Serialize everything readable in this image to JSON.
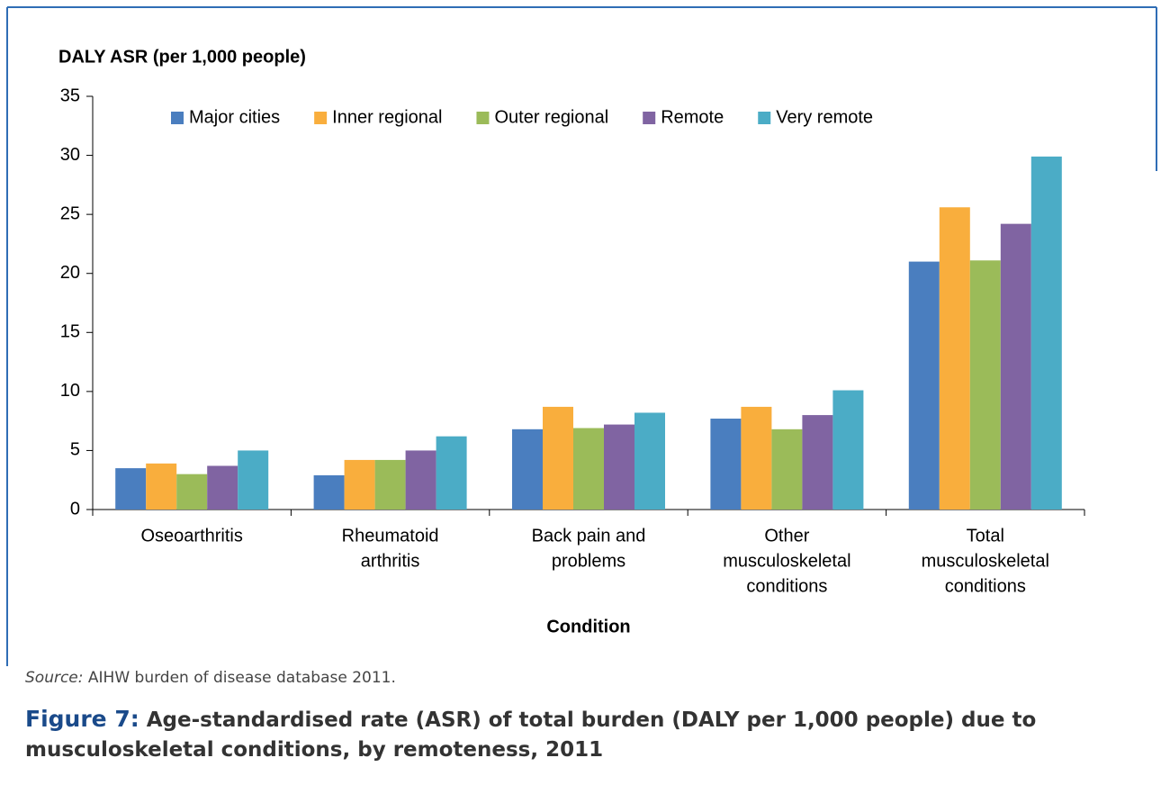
{
  "chart_data": {
    "type": "bar",
    "y_axis_title": "DALY ASR (per 1,000 people)",
    "x_axis_title": "Condition",
    "categories": [
      [
        "Oseoarthritis"
      ],
      [
        "Rheumatoid",
        "arthritis"
      ],
      [
        "Back pain and",
        "problems"
      ],
      [
        "Other",
        "musculoskeletal",
        "conditions"
      ],
      [
        "Total",
        "musculoskeletal",
        "conditions"
      ]
    ],
    "series": [
      {
        "name": "Major cities",
        "color": "#4a7ebf",
        "values": [
          3.5,
          2.9,
          6.8,
          7.7,
          21.0
        ]
      },
      {
        "name": "Inner regional",
        "color": "#f9ae3d",
        "values": [
          3.9,
          4.2,
          8.7,
          8.7,
          25.6
        ]
      },
      {
        "name": "Outer regional",
        "color": "#9bbb59",
        "values": [
          3.0,
          4.2,
          6.9,
          6.8,
          21.1
        ]
      },
      {
        "name": "Remote",
        "color": "#8064a2",
        "values": [
          3.7,
          5.0,
          7.2,
          8.0,
          24.2
        ]
      },
      {
        "name": "Very remote",
        "color": "#4bacc6",
        "values": [
          5.0,
          6.2,
          8.2,
          10.1,
          29.9
        ]
      }
    ],
    "ylim": [
      0,
      35
    ],
    "yticks": [
      0,
      5,
      10,
      15,
      20,
      25,
      30,
      35
    ],
    "legend": "top",
    "source_label": "Source:",
    "source": "AIHW burden of disease database 2011.",
    "figure_label": "Figure 7:",
    "caption": "Age-standardised rate (ASR) of total burden (DALY per 1,000 people) due to musculoskeletal conditions, by remoteness, 2011"
  }
}
